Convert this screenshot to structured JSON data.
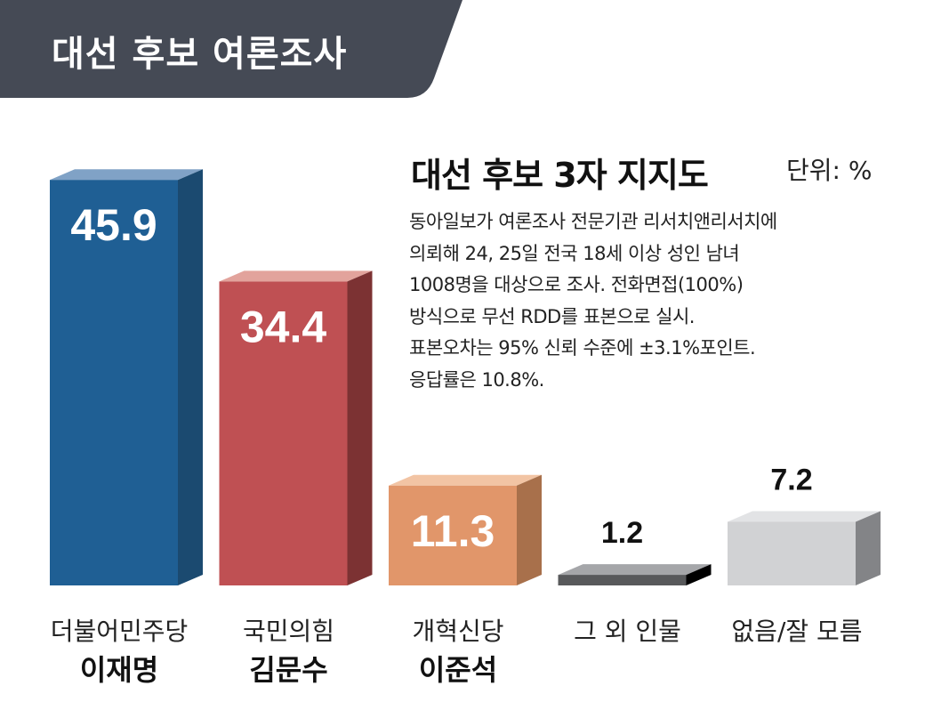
{
  "header": {
    "title": "대선 후보 여론조사",
    "background": "#454a55"
  },
  "chart_data": {
    "type": "bar",
    "title": "대선 후보 3자 지지도",
    "unit_label": "단위: %",
    "categories": [
      {
        "party": "더불어민주당",
        "candidate": "이재명"
      },
      {
        "party": "국민의힘",
        "candidate": "김문수"
      },
      {
        "party": "개혁신당",
        "candidate": "이준석"
      },
      {
        "party": "그 외 인물",
        "candidate": ""
      },
      {
        "party": "없음/잘 모름",
        "candidate": ""
      }
    ],
    "values": [
      45.9,
      34.4,
      11.3,
      1.2,
      7.2
    ],
    "value_labels": [
      "45.9",
      "34.4",
      "11.3",
      "1.2",
      "7.2"
    ],
    "colors": [
      {
        "front": "#1f5f94",
        "side": "#1b4a70",
        "top": "#80a2c6"
      },
      {
        "front": "#bf5053",
        "side": "#7c3233",
        "top": "#e2a39c"
      },
      {
        "front": "#e1966a",
        "side": "#a8704b",
        "top": "#f2c4a4"
      },
      {
        "front": "#58595b",
        "side": "#000000",
        "top": "#a5a6a9"
      },
      {
        "front": "#d1d2d4",
        "side": "#838487",
        "top": "#e2e3e5"
      }
    ],
    "ylim": [
      0,
      50
    ],
    "grid": false,
    "legend": "none"
  },
  "note": [
    "동아일보가 여론조사 전문기관 리서치앤리서치에",
    "의뢰해 24, 25일 전국 18세 이상 성인 남녀",
    "1008명을 대상으로 조사. 전화면접(100%)",
    "방식으로 무선 RDD를 표본으로 실시.",
    "표본오차는 95% 신뢰 수준에 ±3.1%포인트.",
    "응답률은 10.8%."
  ]
}
